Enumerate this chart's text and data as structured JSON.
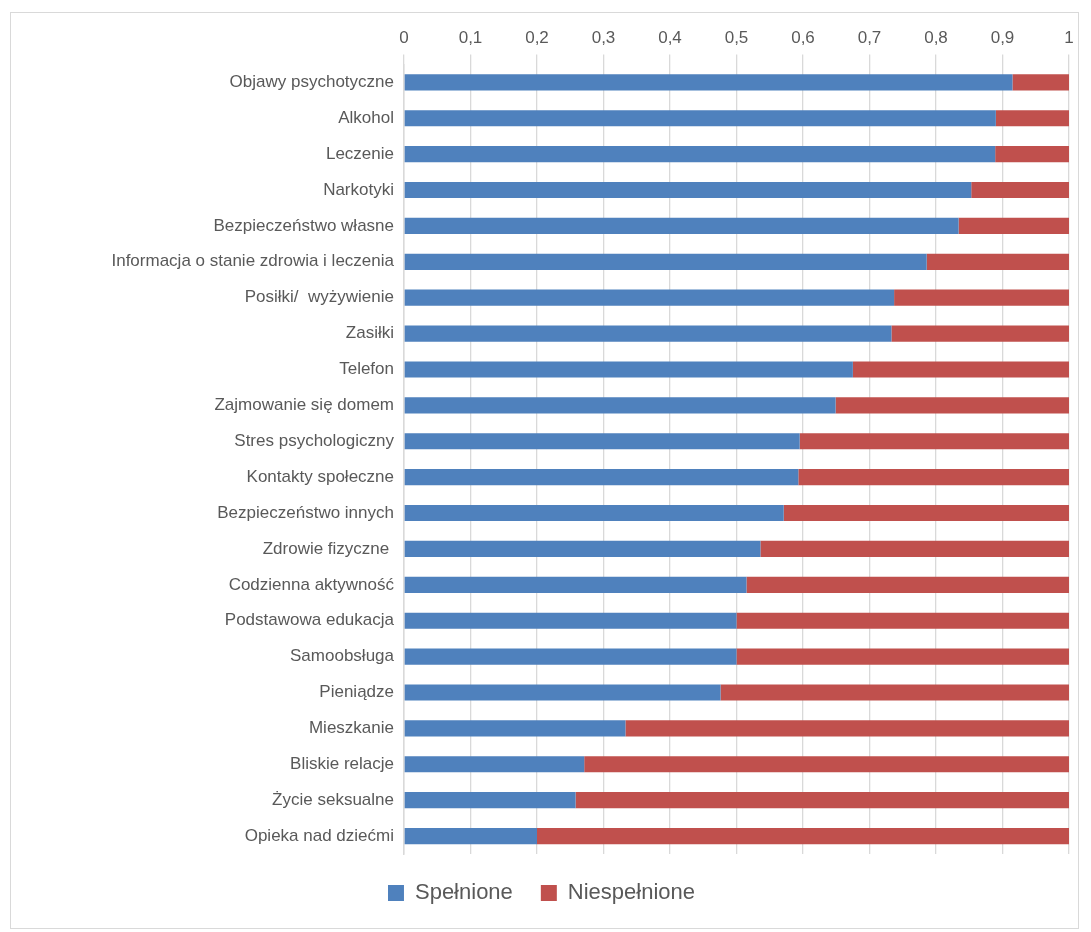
{
  "chart_data": {
    "type": "bar",
    "orientation": "horizontal",
    "stacked": true,
    "categories": [
      "Objawy psychotyczne",
      "Alkohol",
      "Leczenie",
      "Narkotyki",
      "Bezpieczeństwo własne",
      "Informacja o stanie zdrowia i leczenia",
      "Posiłki/  wyżywienie",
      "Zasiłki",
      "Telefon",
      "Zajmowanie się domem",
      "Stres psychologiczny",
      "Kontakty społeczne",
      "Bezpieczeństwo innych",
      "Zdrowie fizyczne ",
      "Codzienna aktywność",
      "Podstawowa edukacja",
      "Samoobsługa",
      "Pieniądze",
      "Mieszkanie",
      "Bliskie relacje",
      "Życie seksualne",
      "Opieka nad dziećmi"
    ],
    "series": [
      {
        "name": "Spełnione",
        "color": "#4f81bd",
        "values": [
          0.915,
          0.89,
          0.889,
          0.853,
          0.834,
          0.786,
          0.737,
          0.733,
          0.675,
          0.649,
          0.595,
          0.593,
          0.571,
          0.536,
          0.515,
          0.5,
          0.5,
          0.476,
          0.333,
          0.271,
          0.258,
          0.2
        ]
      },
      {
        "name": "Niespełnione",
        "color": "#c0504d",
        "values": [
          0.085,
          0.11,
          0.111,
          0.147,
          0.166,
          0.214,
          0.263,
          0.267,
          0.325,
          0.351,
          0.405,
          0.407,
          0.429,
          0.464,
          0.485,
          0.5,
          0.5,
          0.524,
          0.667,
          0.729,
          0.742,
          0.8
        ]
      }
    ],
    "xlim": [
      0,
      1
    ],
    "xticks": [
      {
        "value": 0,
        "label": "0"
      },
      {
        "value": 0.1,
        "label": "0,1"
      },
      {
        "value": 0.2,
        "label": "0,2"
      },
      {
        "value": 0.3,
        "label": "0,3"
      },
      {
        "value": 0.4,
        "label": "0,4"
      },
      {
        "value": 0.5,
        "label": "0,5"
      },
      {
        "value": 0.6,
        "label": "0,6"
      },
      {
        "value": 0.7,
        "label": "0,7"
      },
      {
        "value": 0.8,
        "label": "0,8"
      },
      {
        "value": 0.9,
        "label": "0,9"
      },
      {
        "value": 1,
        "label": "1"
      }
    ],
    "grid": "x",
    "legend": "bottom"
  }
}
